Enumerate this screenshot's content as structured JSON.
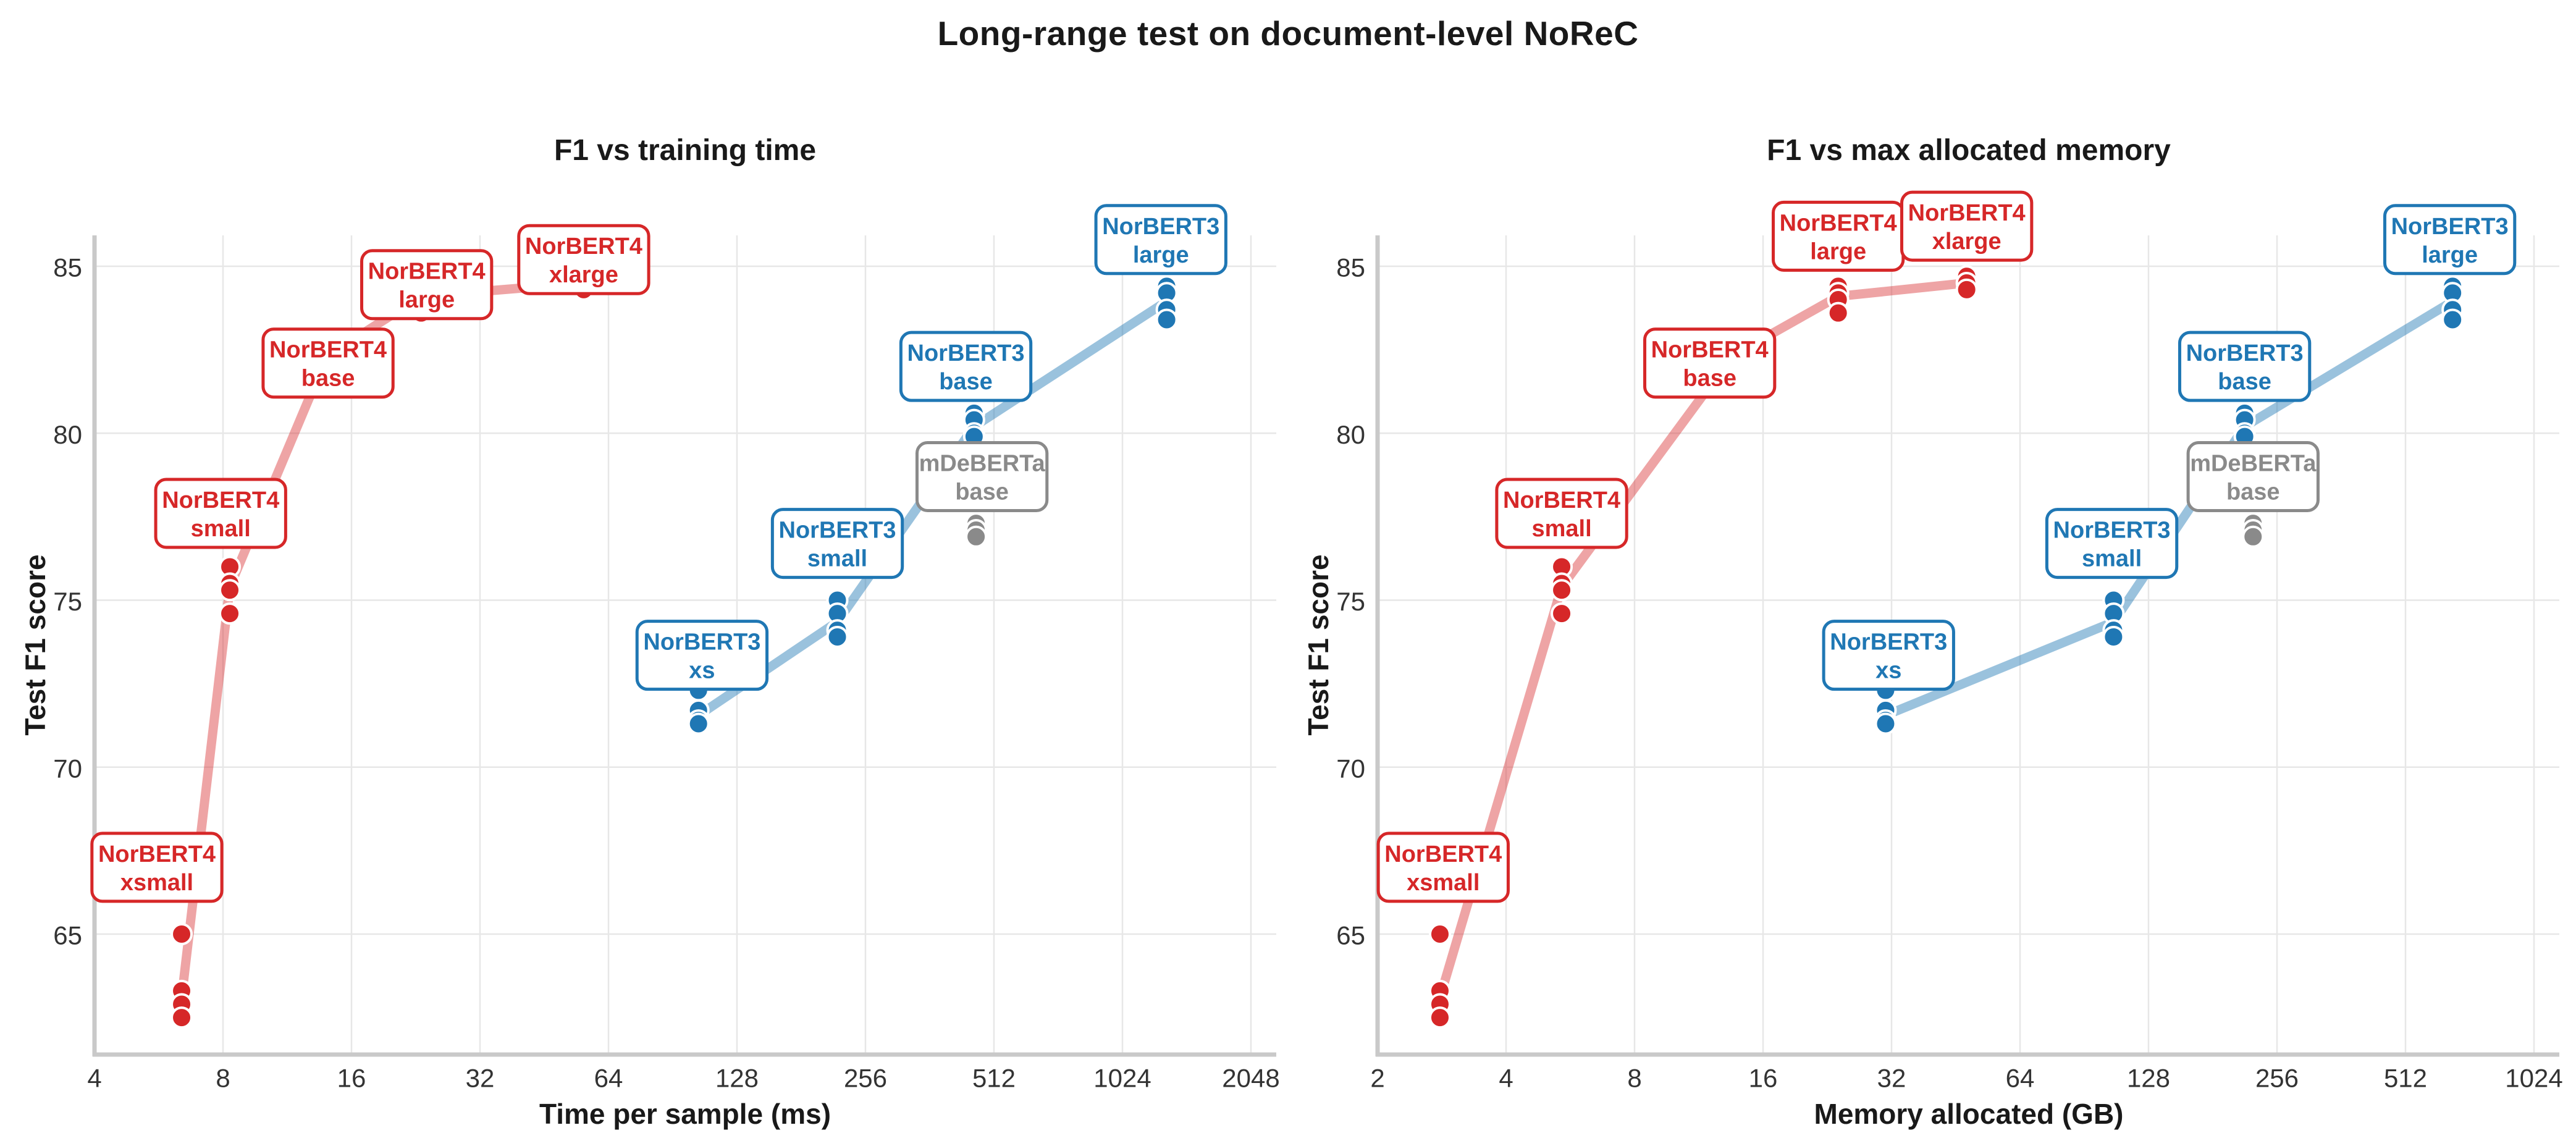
{
  "title": "Long-range test on document-level NoReC",
  "colors": {
    "norbert4": "#d62728",
    "norbert3": "#1f77b4",
    "mdeberta": "#8a8a8a",
    "norbert4_line": "rgba(214,39,40,0.42)",
    "norbert3_line": "rgba(31,119,180,0.45)",
    "grid": "#e7e7e7",
    "spine": "#c9c9c9",
    "tick_text": "#333333",
    "title_text": "#191919",
    "background": "#ffffff"
  },
  "chart_data": {
    "type": "scatter",
    "subplots": [
      {
        "title": "F1 vs training time",
        "xlabel": "Time per sample (ms)",
        "ylabel": "Test F1 score",
        "xscale": "log2",
        "xlim": [
          4,
          2300
        ],
        "ylim": [
          61.4,
          85.9
        ],
        "x_ticks": [
          4,
          8,
          16,
          32,
          64,
          128,
          256,
          512,
          1024,
          2048
        ],
        "y_ticks": [
          65,
          70,
          75,
          80,
          85
        ],
        "grid": true,
        "legend": "none",
        "series": [
          {
            "name": "NorBERT4",
            "color_key": "norbert4",
            "line_color_key": "norbert4_line",
            "trend_line": true,
            "clusters": [
              {
                "model": "xsmall",
                "label": [
                  "NorBERT4",
                  "xsmall"
                ],
                "x": 6.4,
                "f1": [
                  65.0,
                  63.3,
                  62.9,
                  62.5
                ],
                "label_at": [
                  5.6,
                  67.0
                ]
              },
              {
                "model": "small",
                "label": [
                  "NorBERT4",
                  "small"
                ],
                "x": 8.3,
                "f1": [
                  76.0,
                  75.5,
                  75.3,
                  74.6
                ],
                "label_at": [
                  7.9,
                  77.6
                ]
              },
              {
                "model": "base",
                "label": [
                  "NorBERT4",
                  "base"
                ],
                "x": 14.0,
                "f1": [
                  82.9,
                  82.5,
                  82.1,
                  81.7
                ],
                "label_at": [
                  14.1,
                  82.1
                ]
              },
              {
                "model": "large",
                "label": [
                  "NorBERT4",
                  "large"
                ],
                "x": 23.3,
                "f1": [
                  84.4,
                  84.2,
                  84.0,
                  83.6
                ],
                "label_at": [
                  24,
                  84.45
                ]
              },
              {
                "model": "xlarge",
                "label": [
                  "NorBERT4",
                  "xlarge"
                ],
                "x": 56.0,
                "f1": [
                  84.7,
                  84.5,
                  84.3
                ],
                "label_at": [
                  56,
                  85.2
                ]
              }
            ]
          },
          {
            "name": "NorBERT3",
            "color_key": "norbert3",
            "line_color_key": "norbert3_line",
            "trend_line": true,
            "clusters": [
              {
                "model": "xs",
                "label": [
                  "NorBERT3",
                  "xs"
                ],
                "x": 104,
                "f1": [
                  72.3,
                  71.7,
                  71.4,
                  71.3
                ],
                "label_at": [
                  106,
                  73.35
                ]
              },
              {
                "model": "small",
                "label": [
                  "NorBERT3",
                  "small"
                ],
                "x": 220,
                "f1": [
                  75.0,
                  74.6,
                  74.1,
                  73.9
                ],
                "label_at": [
                  220,
                  76.7
                ]
              },
              {
                "model": "base",
                "label": [
                  "NorBERT3",
                  "base"
                ],
                "x": 460,
                "f1": [
                  80.6,
                  80.4,
                  80.0,
                  79.9
                ],
                "label_at": [
                  440,
                  82.0
                ]
              },
              {
                "model": "large",
                "label": [
                  "NorBERT3",
                  "large"
                ],
                "x": 1300,
                "f1": [
                  84.4,
                  84.2,
                  83.7,
                  83.4
                ],
                "label_at": [
                  1260,
                  85.8
                ]
              }
            ]
          },
          {
            "name": "mDeBERTa",
            "color_key": "mdeberta",
            "line_color_key": "mdeberta",
            "trend_line": false,
            "clusters": [
              {
                "model": "base",
                "label": [
                  "mDeBERTa",
                  "base"
                ],
                "x": 465,
                "f1": [
                  77.3,
                  77.1,
                  76.9
                ],
                "label_at": [
                  480,
                  78.7
                ]
              }
            ]
          }
        ]
      },
      {
        "title": "F1 vs max allocated memory",
        "xlabel": "Memory allocated (GB)",
        "ylabel": "Test F1 score",
        "xscale": "log2",
        "xlim": [
          2,
          1150
        ],
        "ylim": [
          61.4,
          85.9
        ],
        "x_ticks": [
          2,
          4,
          8,
          16,
          32,
          64,
          128,
          256,
          512,
          1024
        ],
        "y_ticks": [
          65,
          70,
          75,
          80,
          85
        ],
        "grid": true,
        "legend": "none",
        "series": [
          {
            "name": "NorBERT4",
            "color_key": "norbert4",
            "line_color_key": "norbert4_line",
            "trend_line": true,
            "clusters": [
              {
                "model": "xsmall",
                "label": [
                  "NorBERT4",
                  "xsmall"
                ],
                "x": 2.8,
                "f1": [
                  65.0,
                  63.3,
                  62.9,
                  62.5
                ],
                "label_at": [
                  2.85,
                  67.0
                ]
              },
              {
                "model": "small",
                "label": [
                  "NorBERT4",
                  "small"
                ],
                "x": 5.4,
                "f1": [
                  76.0,
                  75.5,
                  75.3,
                  74.6
                ],
                "label_at": [
                  5.4,
                  77.6
                ]
              },
              {
                "model": "base",
                "label": [
                  "NorBERT4",
                  "base"
                ],
                "x": 13.5,
                "f1": [
                  82.9,
                  82.5,
                  82.1,
                  81.7
                ],
                "label_at": [
                  12,
                  82.1
                ]
              },
              {
                "model": "large",
                "label": [
                  "NorBERT4",
                  "large"
                ],
                "x": 24,
                "f1": [
                  84.4,
                  84.2,
                  84.0,
                  83.6
                ],
                "label_at": [
                  24,
                  85.9
                ]
              },
              {
                "model": "xlarge",
                "label": [
                  "NorBERT4",
                  "xlarge"
                ],
                "x": 48,
                "f1": [
                  84.7,
                  84.5,
                  84.3
                ],
                "label_at": [
                  48,
                  86.2
                ]
              }
            ]
          },
          {
            "name": "NorBERT3",
            "color_key": "norbert3",
            "line_color_key": "norbert3_line",
            "trend_line": true,
            "clusters": [
              {
                "model": "xs",
                "label": [
                  "NorBERT3",
                  "xs"
                ],
                "x": 31,
                "f1": [
                  72.3,
                  71.7,
                  71.4,
                  71.3
                ],
                "label_at": [
                  31.5,
                  73.35
                ]
              },
              {
                "model": "small",
                "label": [
                  "NorBERT3",
                  "small"
                ],
                "x": 106,
                "f1": [
                  75.0,
                  74.6,
                  74.1,
                  73.9
                ],
                "label_at": [
                  105,
                  76.7
                ]
              },
              {
                "model": "base",
                "label": [
                  "NorBERT3",
                  "base"
                ],
                "x": 215,
                "f1": [
                  80.6,
                  80.4,
                  80.0,
                  79.9
                ],
                "label_at": [
                  215,
                  82.0
                ]
              },
              {
                "model": "large",
                "label": [
                  "NorBERT3",
                  "large"
                ],
                "x": 660,
                "f1": [
                  84.4,
                  84.2,
                  83.7,
                  83.4
                ],
                "label_at": [
                  650,
                  85.8
                ]
              }
            ]
          },
          {
            "name": "mDeBERTa",
            "color_key": "mdeberta",
            "line_color_key": "mdeberta",
            "trend_line": false,
            "clusters": [
              {
                "model": "base",
                "label": [
                  "mDeBERTa",
                  "base"
                ],
                "x": 225,
                "f1": [
                  77.3,
                  77.1,
                  76.9
                ],
                "label_at": [
                  225,
                  78.7
                ]
              }
            ]
          }
        ]
      }
    ]
  }
}
